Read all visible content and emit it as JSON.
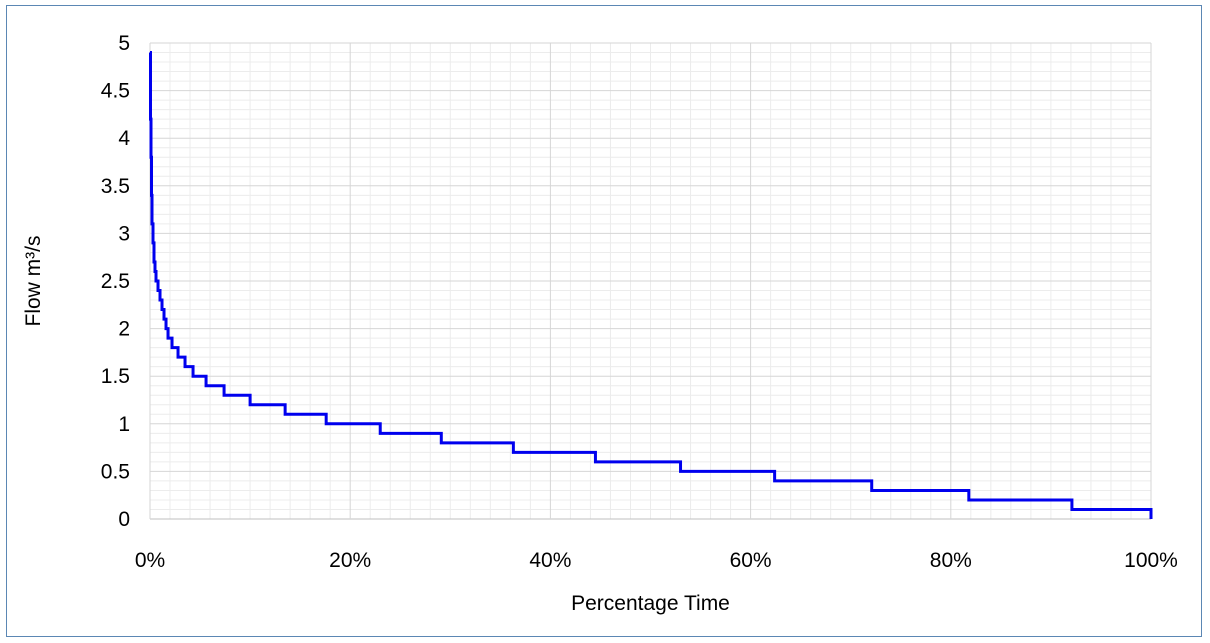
{
  "chart_data": {
    "type": "line",
    "title": "",
    "xlabel": "Percentage Time",
    "ylabel": "Flow m³/s",
    "xlim": [
      0,
      100
    ],
    "ylim": [
      0,
      5
    ],
    "x_ticks": [
      0,
      20,
      40,
      60,
      80,
      100
    ],
    "x_tick_labels": [
      "0%",
      "20%",
      "40%",
      "60%",
      "80%",
      "100%"
    ],
    "y_ticks": [
      0,
      0.5,
      1,
      1.5,
      2,
      2.5,
      3,
      3.5,
      4,
      4.5,
      5
    ],
    "y_tick_labels": [
      "0",
      "0.5",
      "1",
      "1.5",
      "2",
      "2.5",
      "3",
      "3.5",
      "4",
      "4.5",
      "5"
    ],
    "grid": true,
    "legend": "none",
    "series": [
      {
        "color": "#0000ee",
        "points": [
          [
            0,
            4.9
          ],
          [
            0.05,
            4.2
          ],
          [
            0.1,
            3.8
          ],
          [
            0.15,
            3.4
          ],
          [
            0.2,
            3.1
          ],
          [
            0.3,
            2.9
          ],
          [
            0.4,
            2.7
          ],
          [
            0.5,
            2.6
          ],
          [
            0.6,
            2.5
          ],
          [
            0.8,
            2.4
          ],
          [
            1.0,
            2.3
          ],
          [
            1.2,
            2.2
          ],
          [
            1.4,
            2.1
          ],
          [
            1.6,
            2.0
          ],
          [
            1.8,
            1.9
          ],
          [
            2.2,
            1.8
          ],
          [
            2.8,
            1.7
          ],
          [
            3.5,
            1.6
          ],
          [
            4.3,
            1.5
          ],
          [
            5.6,
            1.4
          ],
          [
            7.4,
            1.3
          ],
          [
            10.0,
            1.2
          ],
          [
            13.5,
            1.1
          ],
          [
            17.6,
            1.0
          ],
          [
            23.0,
            0.9
          ],
          [
            29.1,
            0.8
          ],
          [
            36.3,
            0.7
          ],
          [
            44.5,
            0.6
          ],
          [
            53.0,
            0.5
          ],
          [
            62.4,
            0.4
          ],
          [
            72.1,
            0.3
          ],
          [
            81.8,
            0.2
          ],
          [
            92.1,
            0.1
          ],
          [
            100,
            0
          ]
        ]
      }
    ]
  }
}
